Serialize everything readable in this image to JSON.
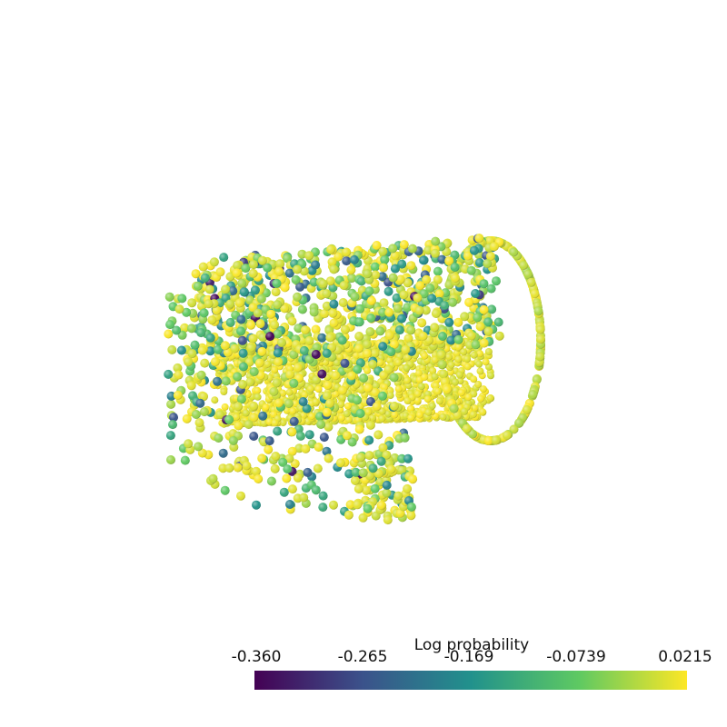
{
  "colorbar": {
    "title": "Log probability",
    "ticks": [
      "-0.360",
      "-0.265",
      "-0.169",
      "-0.0739",
      "0.0215"
    ],
    "min": -0.36,
    "max": 0.0215,
    "colormap": "viridis",
    "colormap_stops": [
      "#440154",
      "#3b528b",
      "#21918c",
      "#5ec962",
      "#fde725"
    ],
    "orientation": "horizontal",
    "placement": "bottom"
  },
  "scene": {
    "background": "#ffffff",
    "marker": "sphere",
    "object": "point-cloud"
  }
}
